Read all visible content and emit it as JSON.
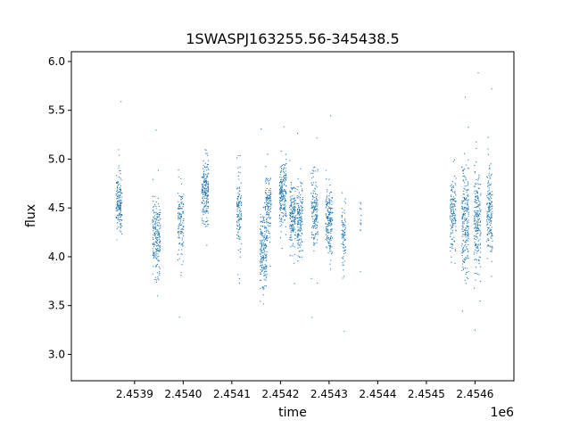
{
  "chart_data": {
    "type": "scatter",
    "title": "1SWASPJ163255.56-345438.5",
    "xlabel": "time",
    "ylabel": "flux",
    "x_offset_label": "1e6",
    "xlim": [
      2.45377,
      2.45468
    ],
    "ylim": [
      2.73,
      6.1
    ],
    "x_ticks": [
      2.4539,
      2.454,
      2.4541,
      2.4542,
      2.4543,
      2.4544,
      2.4545,
      2.4546
    ],
    "x_tick_labels": [
      "2.4539",
      "2.4540",
      "2.4541",
      "2.4542",
      "2.4543",
      "2.4544",
      "2.4545",
      "2.4546"
    ],
    "y_ticks": [
      3.0,
      3.5,
      4.0,
      4.5,
      5.0,
      5.5,
      6.0
    ],
    "y_tick_labels": [
      "3.0",
      "3.5",
      "4.0",
      "4.5",
      "5.0",
      "5.5",
      "6.0"
    ],
    "grid": false,
    "legend": "none",
    "marker_color": "#1f77b4",
    "clusters": [
      {
        "x_center": 2.453868,
        "x_width": 1.2e-05,
        "y_mean": 4.55,
        "y_sd": 0.14,
        "n": 160
      },
      {
        "x_center": 2.453945,
        "x_width": 1.6e-05,
        "y_mean": 4.2,
        "y_sd": 0.18,
        "n": 200
      },
      {
        "x_center": 2.453995,
        "x_width": 1.2e-05,
        "y_mean": 4.35,
        "y_sd": 0.18,
        "n": 120
      },
      {
        "x_center": 2.454045,
        "x_width": 1.4e-05,
        "y_mean": 4.65,
        "y_sd": 0.16,
        "n": 200
      },
      {
        "x_center": 2.454115,
        "x_width": 1e-05,
        "y_mean": 4.45,
        "y_sd": 0.2,
        "n": 120
      },
      {
        "x_center": 2.454165,
        "x_width": 1.4e-05,
        "y_mean": 4.05,
        "y_sd": 0.22,
        "n": 200
      },
      {
        "x_center": 2.454225,
        "x_width": 1.2e-05,
        "y_mean": 4.4,
        "y_sd": 0.18,
        "n": 160
      },
      {
        "x_center": 2.454365,
        "x_width": 3e-06,
        "y_mean": 4.3,
        "y_sd": 0.2,
        "n": 12
      },
      {
        "x_center": 2.454175,
        "x_width": 1.2e-05,
        "y_mean": 4.55,
        "y_sd": 0.15,
        "n": 120
      },
      {
        "x_center": 2.454205,
        "x_width": 1.4e-05,
        "y_mean": 4.62,
        "y_sd": 0.17,
        "n": 200
      },
      {
        "x_center": 2.45424,
        "x_width": 1.2e-05,
        "y_mean": 4.4,
        "y_sd": 0.2,
        "n": 160
      },
      {
        "x_center": 2.45427,
        "x_width": 1.4e-05,
        "y_mean": 4.45,
        "y_sd": 0.17,
        "n": 160
      },
      {
        "x_center": 2.4543,
        "x_width": 1.4e-05,
        "y_mean": 4.35,
        "y_sd": 0.18,
        "n": 180
      },
      {
        "x_center": 2.45433,
        "x_width": 8e-06,
        "y_mean": 4.2,
        "y_sd": 0.15,
        "n": 80
      },
      {
        "x_center": 2.454555,
        "x_width": 1.2e-05,
        "y_mean": 4.45,
        "y_sd": 0.18,
        "n": 140
      },
      {
        "x_center": 2.45458,
        "x_width": 1.4e-05,
        "y_mean": 4.4,
        "y_sd": 0.28,
        "n": 220
      },
      {
        "x_center": 2.454605,
        "x_width": 1.4e-05,
        "y_mean": 4.35,
        "y_sd": 0.26,
        "n": 200
      },
      {
        "x_center": 2.45463,
        "x_width": 1.2e-05,
        "y_mean": 4.45,
        "y_sd": 0.22,
        "n": 160
      }
    ]
  }
}
